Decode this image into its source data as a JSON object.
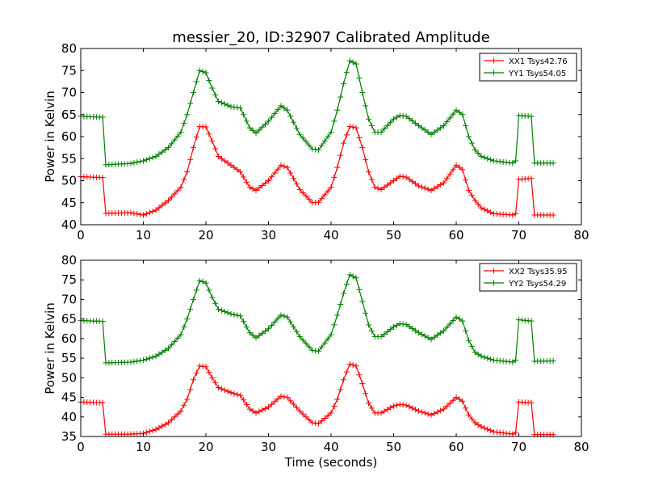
{
  "title": "messier_20, ID:32907 Calibrated Amplitude",
  "chart_data": [
    {
      "type": "line",
      "ylabel": "Power in Kelvin",
      "xlabel": "",
      "xlim": [
        0,
        80
      ],
      "ylim": [
        40,
        80
      ],
      "xticks": [
        0,
        10,
        20,
        30,
        40,
        50,
        60,
        70,
        80
      ],
      "yticks": [
        40,
        45,
        50,
        55,
        60,
        65,
        70,
        75,
        80
      ],
      "legend_position": "top-right",
      "series": [
        {
          "name": "XX1 Tsys42.76",
          "color": "#ff0000",
          "points": [
            [
              0,
              50.9
            ],
            [
              3.6,
              50.7
            ],
            [
              4,
              42.6
            ],
            [
              8,
              42.7
            ],
            [
              10,
              42.2
            ],
            [
              12,
              43.3
            ],
            [
              14,
              45.5
            ],
            [
              16,
              48.5
            ],
            [
              17,
              52
            ],
            [
              18,
              57.5
            ],
            [
              19,
              62.3
            ],
            [
              20,
              62.2
            ],
            [
              21,
              59
            ],
            [
              22,
              55.5
            ],
            [
              24,
              53.5
            ],
            [
              25.5,
              52
            ],
            [
              27,
              48.5
            ],
            [
              28,
              47.8
            ],
            [
              30,
              50
            ],
            [
              32,
              53.5
            ],
            [
              33,
              53
            ],
            [
              35,
              48
            ],
            [
              37,
              45
            ],
            [
              38,
              45.1
            ],
            [
              40,
              48.5
            ],
            [
              41,
              53
            ],
            [
              42,
              58.5
            ],
            [
              43,
              62.3
            ],
            [
              44,
              62
            ],
            [
              45,
              57.5
            ],
            [
              46,
              52
            ],
            [
              47,
              48.5
            ],
            [
              48,
              48
            ],
            [
              50,
              50
            ],
            [
              51,
              51
            ],
            [
              52,
              50.8
            ],
            [
              54,
              48.8
            ],
            [
              56,
              47.8
            ],
            [
              58,
              49.5
            ],
            [
              60,
              53.5
            ],
            [
              61,
              52.5
            ],
            [
              62,
              47.8
            ],
            [
              63,
              45.5
            ],
            [
              64,
              43.8
            ],
            [
              66,
              42.5
            ],
            [
              69,
              42.2
            ],
            [
              69.5,
              42.5
            ],
            [
              70,
              50.3
            ],
            [
              72,
              50.5
            ],
            [
              72.5,
              42.2
            ],
            [
              75.5,
              42.2
            ]
          ]
        },
        {
          "name": "YY1 Tsys54.05",
          "color": "#008000",
          "points": [
            [
              0,
              64.6
            ],
            [
              3.6,
              64.4
            ],
            [
              4,
              53.6
            ],
            [
              8,
              53.9
            ],
            [
              10,
              54.5
            ],
            [
              12,
              55.5
            ],
            [
              14,
              57.5
            ],
            [
              16,
              61
            ],
            [
              17,
              65
            ],
            [
              18,
              70
            ],
            [
              19,
              75
            ],
            [
              20,
              74.5
            ],
            [
              21,
              71
            ],
            [
              22,
              68
            ],
            [
              24,
              66.8
            ],
            [
              25.5,
              66.5
            ],
            [
              27,
              62
            ],
            [
              28,
              60.8
            ],
            [
              30,
              63.5
            ],
            [
              32,
              67
            ],
            [
              33,
              66
            ],
            [
              35,
              60.5
            ],
            [
              37,
              57.2
            ],
            [
              38,
              57
            ],
            [
              40,
              61
            ],
            [
              41,
              66
            ],
            [
              42,
              72
            ],
            [
              43,
              77.2
            ],
            [
              44,
              76.5
            ],
            [
              45,
              70
            ],
            [
              46,
              64
            ],
            [
              47,
              61
            ],
            [
              48,
              61
            ],
            [
              50,
              64
            ],
            [
              51,
              64.8
            ],
            [
              52,
              64.6
            ],
            [
              54,
              62.5
            ],
            [
              56,
              60.5
            ],
            [
              58,
              62.5
            ],
            [
              60,
              66
            ],
            [
              61,
              65
            ],
            [
              62,
              60
            ],
            [
              63,
              57
            ],
            [
              64,
              55.5
            ],
            [
              66,
              54.5
            ],
            [
              69,
              54
            ],
            [
              69.5,
              54.5
            ],
            [
              70,
              64.8
            ],
            [
              72,
              64.6
            ],
            [
              72.5,
              54
            ],
            [
              75.5,
              54
            ]
          ]
        }
      ]
    },
    {
      "type": "line",
      "ylabel": "Power in Kelvin",
      "xlabel": "Time (seconds)",
      "xlim": [
        0,
        80
      ],
      "ylim": [
        35,
        80
      ],
      "xticks": [
        0,
        10,
        20,
        30,
        40,
        50,
        60,
        70,
        80
      ],
      "yticks": [
        35,
        40,
        45,
        50,
        55,
        60,
        65,
        70,
        75,
        80
      ],
      "legend_position": "top-right",
      "series": [
        {
          "name": "XX2 Tsys35.95",
          "color": "#ff0000",
          "points": [
            [
              0,
              43.8
            ],
            [
              3.6,
              43.6
            ],
            [
              4,
              35.6
            ],
            [
              8,
              35.6
            ],
            [
              10,
              35.8
            ],
            [
              12,
              36.8
            ],
            [
              14,
              38.5
            ],
            [
              16,
              41.5
            ],
            [
              17,
              44.5
            ],
            [
              18,
              49.5
            ],
            [
              19,
              53
            ],
            [
              20,
              52.8
            ],
            [
              21,
              50
            ],
            [
              22,
              47.5
            ],
            [
              24,
              46.2
            ],
            [
              25.5,
              45.5
            ],
            [
              27,
              42
            ],
            [
              28,
              41
            ],
            [
              30,
              42.5
            ],
            [
              32,
              45.3
            ],
            [
              33,
              45
            ],
            [
              35,
              41.5
            ],
            [
              37,
              38.5
            ],
            [
              38,
              38.3
            ],
            [
              40,
              41
            ],
            [
              41,
              44.5
            ],
            [
              42,
              49.5
            ],
            [
              43,
              53.5
            ],
            [
              44,
              53
            ],
            [
              45,
              48.5
            ],
            [
              46,
              43.5
            ],
            [
              47,
              41
            ],
            [
              48,
              41
            ],
            [
              50,
              42.8
            ],
            [
              51,
              43.2
            ],
            [
              52,
              43
            ],
            [
              54,
              41.5
            ],
            [
              56,
              40.5
            ],
            [
              58,
              42
            ],
            [
              60,
              45
            ],
            [
              61,
              44
            ],
            [
              62,
              40.5
            ],
            [
              63,
              38.5
            ],
            [
              64,
              37.5
            ],
            [
              66,
              36.2
            ],
            [
              69,
              35.6
            ],
            [
              69.5,
              36
            ],
            [
              70,
              43.8
            ],
            [
              72,
              43.6
            ],
            [
              72.5,
              35.5
            ],
            [
              75.5,
              35.5
            ]
          ]
        },
        {
          "name": "YY2 Tsys54.29",
          "color": "#008000",
          "points": [
            [
              0,
              64.6
            ],
            [
              3.6,
              64.4
            ],
            [
              4,
              53.8
            ],
            [
              8,
              54
            ],
            [
              10,
              54.5
            ],
            [
              12,
              55.5
            ],
            [
              14,
              57.5
            ],
            [
              16,
              61
            ],
            [
              17,
              65
            ],
            [
              18,
              70
            ],
            [
              19,
              74.8
            ],
            [
              20,
              74.2
            ],
            [
              21,
              70.5
            ],
            [
              22,
              67.5
            ],
            [
              24,
              66.3
            ],
            [
              25.5,
              65.8
            ],
            [
              27,
              61.5
            ],
            [
              28,
              60.2
            ],
            [
              30,
              62.5
            ],
            [
              32,
              66
            ],
            [
              33,
              65.5
            ],
            [
              35,
              60.5
            ],
            [
              37,
              57
            ],
            [
              38,
              56.8
            ],
            [
              40,
              61
            ],
            [
              41,
              66
            ],
            [
              42,
              71.5
            ],
            [
              43,
              76.3
            ],
            [
              44,
              75.5
            ],
            [
              45,
              69.5
            ],
            [
              46,
              63.5
            ],
            [
              47,
              60.5
            ],
            [
              48,
              60.5
            ],
            [
              50,
              63
            ],
            [
              51,
              63.8
            ],
            [
              52,
              63.6
            ],
            [
              54,
              61.5
            ],
            [
              56,
              59.8
            ],
            [
              58,
              62
            ],
            [
              60,
              65.5
            ],
            [
              61,
              64.5
            ],
            [
              62,
              59.5
            ],
            [
              63,
              56.5
            ],
            [
              64,
              55.5
            ],
            [
              66,
              54.5
            ],
            [
              69,
              54
            ],
            [
              69.5,
              54.5
            ],
            [
              70,
              64.8
            ],
            [
              72,
              64.5
            ],
            [
              72.5,
              54.2
            ],
            [
              75.5,
              54.3
            ]
          ]
        }
      ]
    }
  ]
}
